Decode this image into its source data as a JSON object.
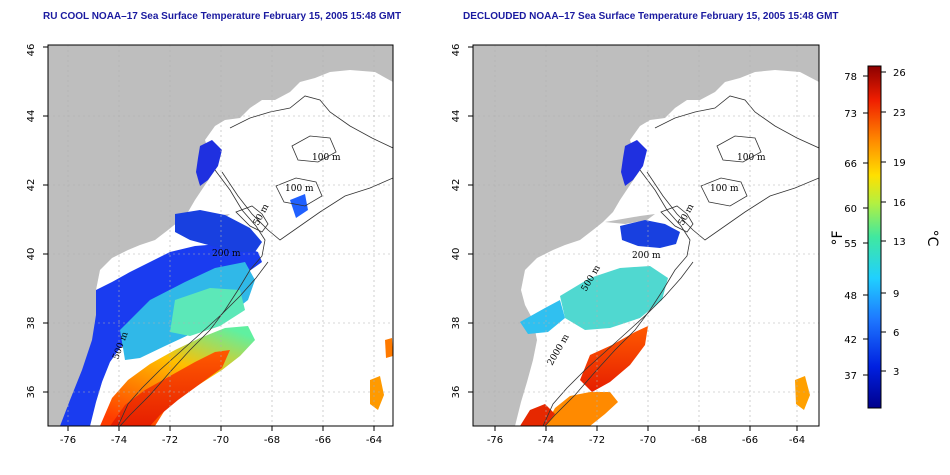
{
  "titles": {
    "left": "RU COOL NOAA–17 Sea Surface Temperature February 15, 2005 15:48 GMT",
    "right": "DECLOUDED NOAA–17 Sea Surface Temperature February 15, 2005 15:48 GMT"
  },
  "map_axes": {
    "lon_ticks": [
      "-76",
      "-74",
      "-72",
      "-70",
      "-68",
      "-66",
      "-64"
    ],
    "lat_ticks": [
      "36",
      "38",
      "40",
      "42",
      "44",
      "46"
    ]
  },
  "contour_labels_left": [
    "100 m",
    "100 m",
    "50 m",
    "200 m",
    "500 m"
  ],
  "contour_labels_right": [
    "100 m",
    "100 m",
    "50 m",
    "200 m",
    "500 m",
    "2000 m"
  ],
  "colorbar": {
    "fahrenheit_ticks": [
      "78",
      "73",
      "66",
      "60",
      "55",
      "48",
      "42",
      "37"
    ],
    "celsius_ticks": [
      "26",
      "23",
      "19",
      "16",
      "13",
      "9",
      "6",
      "3"
    ],
    "fahrenheit_unit": "°F",
    "celsius_unit": "°C"
  },
  "colors": {
    "land": "#bebebe",
    "title": "#1a1aa0",
    "cold": "#0a14c8",
    "warm": "#e61e00"
  }
}
